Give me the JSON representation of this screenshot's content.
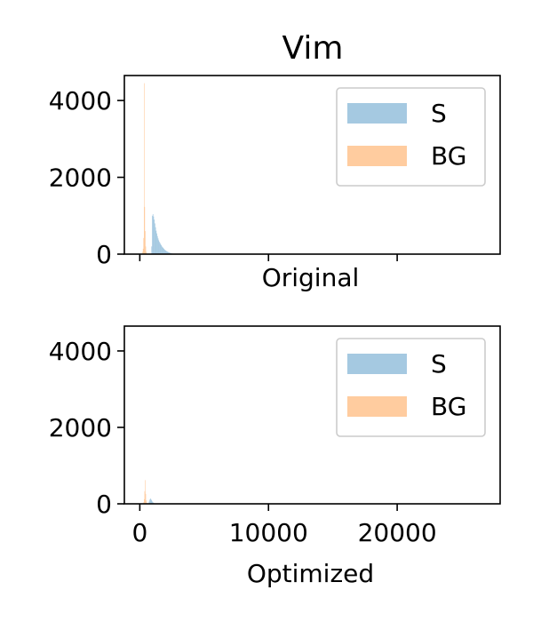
{
  "figure": {
    "title": "Vim"
  },
  "chart_data": [
    {
      "type": "histogram",
      "xlabel": "Original",
      "ylabel": "",
      "xlim": [
        -1200,
        28000
      ],
      "ylim": [
        0,
        4650
      ],
      "xticks": [
        0,
        10000,
        20000
      ],
      "show_xtick_labels": false,
      "yticks": [
        0,
        2000,
        4000
      ],
      "legend": {
        "position": "top-right",
        "entries": [
          "S",
          "BG"
        ]
      },
      "series": [
        {
          "name": "S",
          "color": "#1f77b4",
          "alpha": 0.4,
          "bin_width": 50,
          "bin_start": 900,
          "counts": [
            200,
            1000,
            1040,
            980,
            900,
            800,
            700,
            610,
            540,
            470,
            410,
            360,
            320,
            290,
            260,
            230,
            200,
            180,
            160,
            140,
            120,
            105,
            92,
            80,
            70,
            60,
            52,
            45,
            38,
            32,
            26,
            20,
            15,
            12,
            9,
            7,
            5,
            4,
            3,
            2
          ]
        },
        {
          "name": "BG",
          "color": "#ff7f0e",
          "alpha": 0.4,
          "bin_width": 40,
          "bin_start": 200,
          "counts": [
            60,
            140,
            420,
            4450,
            1230,
            600,
            200,
            60
          ]
        }
      ]
    },
    {
      "type": "histogram",
      "xlabel": "Optimized",
      "ylabel": "",
      "xlim": [
        -1200,
        28000
      ],
      "ylim": [
        0,
        4650
      ],
      "xticks": [
        0,
        10000,
        20000
      ],
      "xtick_labels": [
        "0",
        "10000",
        "20000"
      ],
      "show_xtick_labels": true,
      "yticks": [
        0,
        2000,
        4000
      ],
      "legend": {
        "position": "top-right",
        "entries": [
          "S",
          "BG"
        ]
      },
      "series": [
        {
          "name": "S",
          "color": "#1f77b4",
          "alpha": 0.4,
          "bin_width": 50,
          "bin_start": 700,
          "counts": [
            60,
            110,
            140,
            120,
            90,
            60,
            40,
            25,
            15,
            8
          ]
        },
        {
          "name": "BG",
          "color": "#ff7f0e",
          "alpha": 0.4,
          "bin_width": 40,
          "bin_start": 280,
          "counts": [
            40,
            120,
            330,
            620,
            260,
            90,
            30
          ]
        }
      ]
    }
  ]
}
